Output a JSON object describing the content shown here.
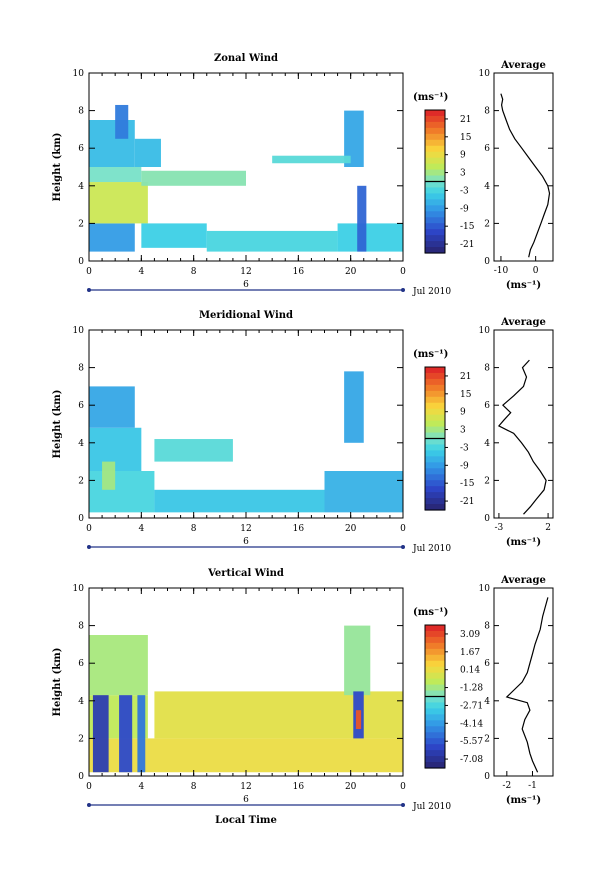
{
  "x_axis_label": "Local Time",
  "date_label": "Jul 2010",
  "y_axis_label": "Height (km)",
  "time_ticks": [
    "0",
    "4",
    "8",
    "12",
    "16",
    "20",
    "0"
  ],
  "date_tick": "6",
  "height_ticks": [
    "0",
    "2",
    "4",
    "6",
    "8",
    "10"
  ],
  "average_title": "Average",
  "unit": "(ms⁻¹)",
  "chart_data": [
    {
      "type": "heatmap",
      "title": "Zonal Wind",
      "xlim": [
        0,
        24
      ],
      "ylim": [
        0,
        10
      ],
      "colorbar": {
        "ticks": [
          "21",
          "15",
          "9",
          "3",
          "-3",
          "-9",
          "-15",
          "-21"
        ],
        "range": [
          -24,
          24
        ]
      },
      "regions": [
        {
          "x0": 0.0,
          "x1": 3.5,
          "y0": 0.5,
          "y1": 2.0,
          "v": -9
        },
        {
          "x0": 0.0,
          "x1": 4.5,
          "y0": 2.0,
          "y1": 4.2,
          "v": 6
        },
        {
          "x0": 0.0,
          "x1": 4.0,
          "y0": 4.2,
          "y1": 5.0,
          "v": 0
        },
        {
          "x0": 0.0,
          "x1": 3.5,
          "y0": 5.0,
          "y1": 7.5,
          "v": -6
        },
        {
          "x0": 2.0,
          "x1": 3.0,
          "y0": 6.5,
          "y1": 8.3,
          "v": -12
        },
        {
          "x0": 3.5,
          "x1": 5.5,
          "y0": 5.0,
          "y1": 6.5,
          "v": -6
        },
        {
          "x0": 4.0,
          "x1": 9.0,
          "y0": 0.7,
          "y1": 2.0,
          "v": -4
        },
        {
          "x0": 9.0,
          "x1": 19.0,
          "y0": 0.5,
          "y1": 1.6,
          "v": -3
        },
        {
          "x0": 19.0,
          "x1": 24.0,
          "y0": 0.5,
          "y1": 2.0,
          "v": -4
        },
        {
          "x0": 4.0,
          "x1": 12.0,
          "y0": 4.0,
          "y1": 4.8,
          "v": 1
        },
        {
          "x0": 19.5,
          "x1": 21.0,
          "y0": 5.0,
          "y1": 8.0,
          "v": -8
        },
        {
          "x0": 20.5,
          "x1": 21.2,
          "y0": 0.5,
          "y1": 4.0,
          "v": -14
        },
        {
          "x0": 14.0,
          "x1": 20.0,
          "y0": 5.2,
          "y1": 5.6,
          "v": -2
        }
      ],
      "average": {
        "xlim": [
          -12,
          5
        ],
        "xticks": [
          "-10",
          "0"
        ],
        "x": [
          -2,
          -1.5,
          -0.5,
          0.5,
          1.5,
          2.5,
          3.5,
          4,
          3.5,
          2,
          0,
          -2,
          -4,
          -6,
          -7.5,
          -8.5,
          -9.5,
          -9.8,
          -9.5,
          -10
        ],
        "y": [
          0.2,
          0.6,
          1.0,
          1.5,
          2.0,
          2.5,
          3.0,
          3.6,
          4.0,
          4.5,
          5.0,
          5.5,
          6.0,
          6.5,
          7.0,
          7.5,
          8.0,
          8.3,
          8.6,
          8.9
        ]
      }
    },
    {
      "type": "heatmap",
      "title": "Meridional Wind",
      "xlim": [
        0,
        24
      ],
      "ylim": [
        0,
        10
      ],
      "colorbar": {
        "ticks": [
          "21",
          "15",
          "9",
          "3",
          "-3",
          "-9",
          "-15",
          "-21"
        ],
        "range": [
          -24,
          24
        ]
      },
      "regions": [
        {
          "x0": 0.0,
          "x1": 5.0,
          "y0": 0.3,
          "y1": 2.5,
          "v": -3
        },
        {
          "x0": 0.0,
          "x1": 4.0,
          "y0": 2.5,
          "y1": 4.8,
          "v": -5
        },
        {
          "x0": 0.0,
          "x1": 3.5,
          "y0": 4.8,
          "y1": 7.0,
          "v": -8
        },
        {
          "x0": 5.0,
          "x1": 18.0,
          "y0": 0.3,
          "y1": 1.5,
          "v": -5
        },
        {
          "x0": 18.0,
          "x1": 24.0,
          "y0": 0.3,
          "y1": 2.5,
          "v": -7
        },
        {
          "x0": 5.0,
          "x1": 11.0,
          "y0": 3.0,
          "y1": 4.2,
          "v": -2
        },
        {
          "x0": 19.5,
          "x1": 21.0,
          "y0": 4.0,
          "y1": 7.8,
          "v": -8
        },
        {
          "x0": 1.0,
          "x1": 2.0,
          "y0": 1.5,
          "y1": 3.0,
          "v": 3
        }
      ],
      "average": {
        "xlim": [
          -3.5,
          2.5
        ],
        "xticks": [
          "-3",
          "2"
        ],
        "x": [
          -0.5,
          0.2,
          0.8,
          1.6,
          1.8,
          1.2,
          0.5,
          0,
          -0.7,
          -1.5,
          -3,
          -2.5,
          -1.8,
          -2.6,
          -1.5,
          -0.5,
          -0.2,
          -0.6,
          0.1
        ],
        "y": [
          0.2,
          0.6,
          1.0,
          1.5,
          2.0,
          2.5,
          3.0,
          3.5,
          4.0,
          4.5,
          4.9,
          5.2,
          5.6,
          6.0,
          6.5,
          7.0,
          7.5,
          8.0,
          8.4
        ]
      }
    },
    {
      "type": "heatmap",
      "title": "Vertical Wind",
      "xlim": [
        0,
        24
      ],
      "ylim": [
        0,
        10
      ],
      "colorbar": {
        "ticks": [
          "3.09",
          "1.67",
          "0.14",
          "-1.28",
          "-2.71",
          "-4.14",
          "-5.57",
          "-7.08"
        ],
        "range": [
          -7.8,
          3.8
        ]
      },
      "regions": [
        {
          "x0": 0.0,
          "x1": 24.0,
          "y0": 0.2,
          "y1": 2.0,
          "v": 0.2
        },
        {
          "x0": 0.0,
          "x1": 4.5,
          "y0": 2.0,
          "y1": 4.3,
          "v": -0.8
        },
        {
          "x0": 0.0,
          "x1": 4.5,
          "y0": 4.3,
          "y1": 7.5,
          "v": -1.2
        },
        {
          "x0": 0.3,
          "x1": 1.5,
          "y0": 0.2,
          "y1": 4.3,
          "v": -6.5
        },
        {
          "x0": 2.3,
          "x1": 3.3,
          "y0": 0.2,
          "y1": 4.3,
          "v": -6.0
        },
        {
          "x0": 3.7,
          "x1": 4.3,
          "y0": 0.2,
          "y1": 4.3,
          "v": -5.0
        },
        {
          "x0": 5.0,
          "x1": 24.0,
          "y0": 2.0,
          "y1": 4.5,
          "v": 0.0
        },
        {
          "x0": 19.5,
          "x1": 21.5,
          "y0": 4.3,
          "y1": 8.0,
          "v": -1.5
        },
        {
          "x0": 20.2,
          "x1": 21.0,
          "y0": 2.0,
          "y1": 4.5,
          "v": -6.0
        },
        {
          "x0": 20.4,
          "x1": 20.8,
          "y0": 2.5,
          "y1": 3.5,
          "v": 2.8
        }
      ],
      "average": {
        "xlim": [
          -2.5,
          -0.2
        ],
        "xticks": [
          "-2",
          "-1"
        ],
        "x": [
          -0.8,
          -1.0,
          -1.1,
          -1.2,
          -1.4,
          -1.3,
          -1.1,
          -1.2,
          -2.0,
          -1.7,
          -1.4,
          -1.2,
          -1.1,
          -1.0,
          -0.9,
          -0.7,
          -0.6,
          -0.4
        ],
        "y": [
          0.2,
          0.8,
          1.2,
          1.8,
          2.5,
          3.0,
          3.5,
          3.9,
          4.2,
          4.6,
          5.0,
          5.5,
          6.0,
          6.5,
          7.0,
          7.8,
          8.5,
          9.5
        ]
      }
    }
  ]
}
